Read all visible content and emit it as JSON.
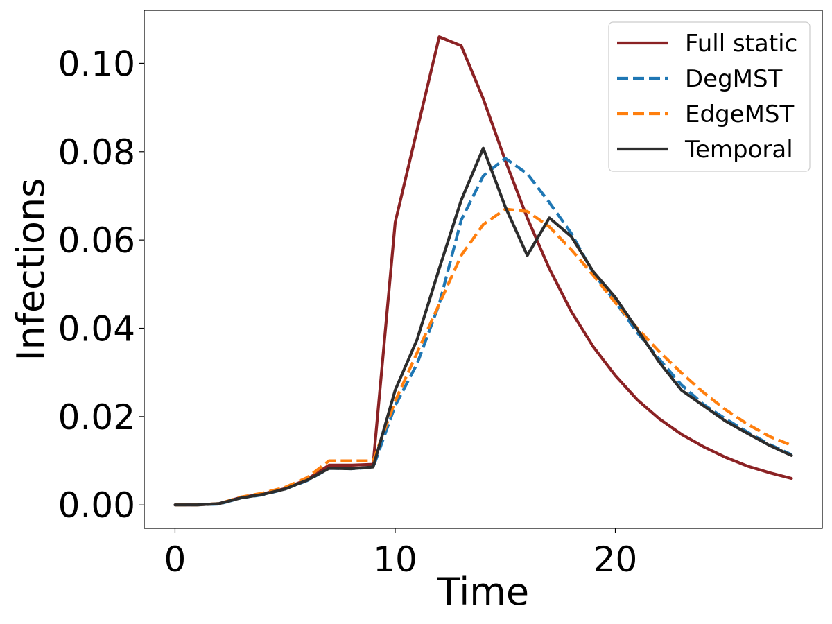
{
  "chart_data": {
    "type": "line",
    "title": "",
    "xlabel": "Time",
    "ylabel": "Infections",
    "xlim": [
      -1.4,
      29.4
    ],
    "ylim": [
      -0.0053,
      0.112
    ],
    "xticks": [
      0,
      10,
      20
    ],
    "xtick_labels": [
      "0",
      "10",
      "20"
    ],
    "yticks": [
      0.0,
      0.02,
      0.04,
      0.06,
      0.08,
      0.1
    ],
    "ytick_labels": [
      "0.00",
      "0.02",
      "0.04",
      "0.06",
      "0.08",
      "0.10"
    ],
    "grid": false,
    "legend_position": "top-right",
    "series": [
      {
        "name": "Full static",
        "color": "#8b2224",
        "dash": "solid",
        "x": [
          0,
          1,
          2,
          3,
          4,
          5,
          6,
          7,
          8,
          9,
          10,
          11,
          12,
          13,
          14,
          15,
          16,
          17,
          18,
          19,
          20,
          21,
          22,
          23,
          24,
          25,
          26,
          27,
          28
        ],
        "y": [
          0.0,
          0.0,
          0.0003,
          0.0017,
          0.0025,
          0.0037,
          0.0058,
          0.009,
          0.009,
          0.0092,
          0.064,
          0.085,
          0.106,
          0.104,
          0.092,
          0.078,
          0.065,
          0.0535,
          0.0438,
          0.0358,
          0.0293,
          0.0238,
          0.0195,
          0.016,
          0.0132,
          0.0108,
          0.0088,
          0.0073,
          0.006
        ]
      },
      {
        "name": "DegMST",
        "color": "#1f77b4",
        "dash": "dashed",
        "x": [
          0,
          1,
          2,
          3,
          4,
          5,
          6,
          7,
          8,
          9,
          10,
          11,
          12,
          13,
          14,
          15,
          16,
          17,
          18,
          19,
          20,
          21,
          22,
          23,
          24,
          25,
          26,
          27,
          28
        ],
        "y": [
          0.0,
          0.0,
          0.0002,
          0.0016,
          0.0023,
          0.0036,
          0.0055,
          0.0083,
          0.0082,
          0.0085,
          0.0225,
          0.032,
          0.0455,
          0.0645,
          0.0745,
          0.0785,
          0.075,
          0.0685,
          0.0615,
          0.0525,
          0.046,
          0.039,
          0.033,
          0.0272,
          0.0228,
          0.0195,
          0.0165,
          0.0137,
          0.0114
        ]
      },
      {
        "name": "EdgeMST",
        "color": "#ff7f0e",
        "dash": "dashed",
        "x": [
          0,
          1,
          2,
          3,
          4,
          5,
          6,
          7,
          8,
          9,
          10,
          11,
          12,
          13,
          14,
          15,
          16,
          17,
          18,
          19,
          20,
          21,
          22,
          23,
          24,
          25,
          26,
          27,
          28
        ],
        "y": [
          0.0,
          0.0,
          0.0003,
          0.0018,
          0.0027,
          0.004,
          0.0062,
          0.01,
          0.01,
          0.01,
          0.0235,
          0.0345,
          0.0455,
          0.0565,
          0.0635,
          0.067,
          0.0665,
          0.063,
          0.0578,
          0.052,
          0.0458,
          0.04,
          0.0347,
          0.0299,
          0.0255,
          0.0216,
          0.0183,
          0.0155,
          0.0135
        ]
      },
      {
        "name": "Temporal",
        "color": "#2d2d2d",
        "dash": "solid",
        "x": [
          0,
          1,
          2,
          3,
          4,
          5,
          6,
          7,
          8,
          9,
          10,
          11,
          12,
          13,
          14,
          15,
          16,
          17,
          18,
          19,
          20,
          21,
          22,
          23,
          24,
          25,
          26,
          27,
          28
        ],
        "y": [
          0.0,
          0.0,
          0.0003,
          0.0016,
          0.0024,
          0.0036,
          0.0056,
          0.0083,
          0.0082,
          0.0086,
          0.026,
          0.0375,
          0.0535,
          0.069,
          0.0808,
          0.0675,
          0.0565,
          0.065,
          0.0608,
          0.0528,
          0.047,
          0.0397,
          0.0323,
          0.026,
          0.0225,
          0.019,
          0.0162,
          0.0135,
          0.0112
        ]
      }
    ]
  }
}
